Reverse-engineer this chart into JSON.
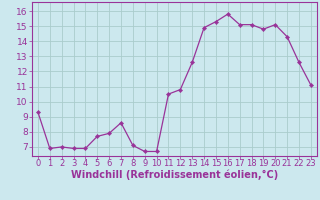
{
  "x": [
    0,
    1,
    2,
    3,
    4,
    5,
    6,
    7,
    8,
    9,
    10,
    11,
    12,
    13,
    14,
    15,
    16,
    17,
    18,
    19,
    20,
    21,
    22,
    23
  ],
  "y": [
    9.3,
    6.9,
    7.0,
    6.9,
    6.9,
    7.7,
    7.9,
    8.6,
    7.1,
    6.7,
    6.7,
    10.5,
    10.8,
    12.6,
    14.9,
    15.3,
    15.8,
    15.1,
    15.1,
    14.8,
    15.1,
    14.3,
    12.6,
    11.1
  ],
  "line_color": "#993399",
  "marker_color": "#993399",
  "bg_color": "#cce8ee",
  "grid_color": "#aacccc",
  "xlabel": "Windchill (Refroidissement éolien,°C)",
  "xlabel_color": "#993399",
  "yticks": [
    7,
    8,
    9,
    10,
    11,
    12,
    13,
    14,
    15,
    16
  ],
  "xtick_labels": [
    "0",
    "1",
    "2",
    "3",
    "4",
    "5",
    "6",
    "7",
    "8",
    "9",
    "10",
    "11",
    "12",
    "13",
    "14",
    "15",
    "16",
    "17",
    "18",
    "19",
    "20",
    "21",
    "22",
    "23"
  ],
  "ylim": [
    6.4,
    16.6
  ],
  "xlim": [
    -0.5,
    23.5
  ],
  "tick_color": "#993399",
  "tick_fontsize": 6.5,
  "xlabel_fontsize": 7.0,
  "spine_color": "#993399"
}
